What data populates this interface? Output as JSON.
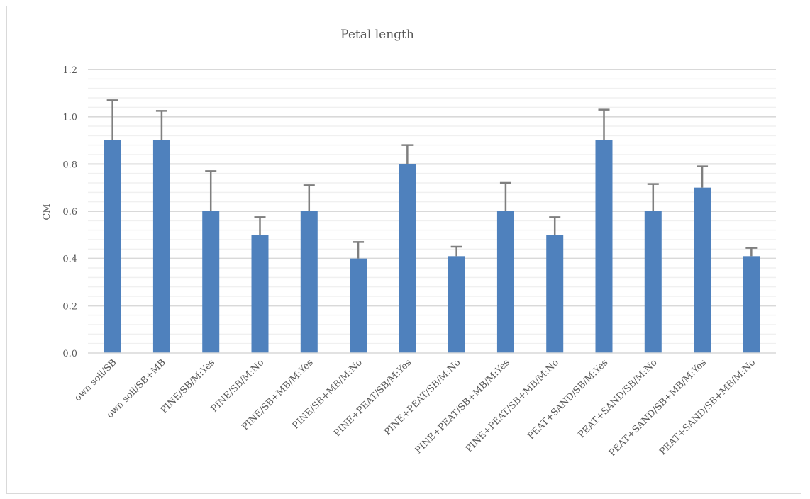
{
  "chart_data": {
    "type": "bar",
    "title": "Petal length",
    "xlabel": "",
    "ylabel": "CM",
    "ylim": [
      0,
      1.2
    ],
    "yticks": [
      "0.0",
      "0.2",
      "0.4",
      "0.6",
      "0.8",
      "1.0",
      "1.2"
    ],
    "grid": true,
    "legend": "none",
    "bar_color": "#4f81bd",
    "error_color": "#7f7f7f",
    "categories": [
      "own soil/SB",
      "own soil/SB+MB",
      "PINE/SB/M:Yes",
      "PINE/SB/M:No",
      "PINE/SB+MB/M:Yes",
      "PINE/SB+MB/M:No",
      "PINE+PEAT/SB/M:Yes",
      "PINE+PEAT/SB/M:No",
      "PINE+PEAT/SB+MB/M:Yes",
      "PINE+PEAT/SB+MB/M:No",
      "PEAT+SAND/SB/M:Yes",
      "PEAT+SAND/SB/M:No",
      "PEAT+SAND/SB+MB/M:Yes",
      "PEAT+SAND/SB+MB/M:No"
    ],
    "values": [
      0.9,
      0.9,
      0.6,
      0.5,
      0.6,
      0.4,
      0.8,
      0.41,
      0.6,
      0.5,
      0.9,
      0.6,
      0.7,
      0.41
    ],
    "error_plus": [
      0.17,
      0.125,
      0.17,
      0.075,
      0.11,
      0.07,
      0.08,
      0.04,
      0.12,
      0.075,
      0.13,
      0.115,
      0.09,
      0.035
    ]
  }
}
